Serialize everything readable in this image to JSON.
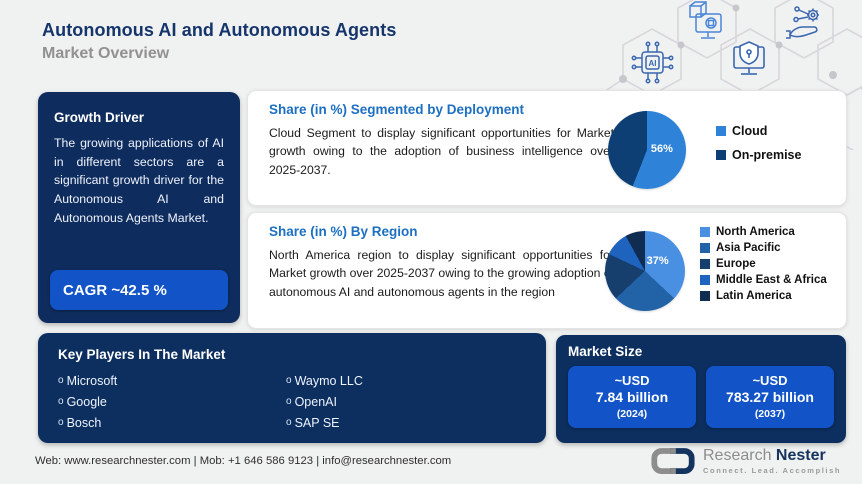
{
  "header": {
    "title": "Autonomous AI and Autonomous Agents",
    "subtitle": "Market Overview"
  },
  "growth_driver": {
    "title": "Growth Driver",
    "body": "The growing applications of AI in different sectors are a significant growth driver for the Autonomous AI and Autonomous Agents Market.",
    "cagr_label": "CAGR ~42.5 %"
  },
  "deployment_card": {
    "title": "Share (in %) Segmented by Deployment",
    "body": "Cloud Segment to display significant opportunities for Market growth owing to the adoption of business intelligence over 2025-2037."
  },
  "region_card": {
    "title": "Share (in %) By Region",
    "body": "North America region to display significant opportunities for Market growth over 2025-2037 owing to the growing adoption of autonomous AI and autonomous agents in the region"
  },
  "chart_data": [
    {
      "type": "pie",
      "title": "Share (in %) Segmented by Deployment",
      "labels": [
        "Cloud",
        "On-premise"
      ],
      "values": [
        56,
        44
      ],
      "colors": [
        "#2e82d8",
        "#0d3e74"
      ],
      "data_label": "56%",
      "legend_position": "right"
    },
    {
      "type": "pie",
      "title": "Share (in %) By Region",
      "labels": [
        "North America",
        "Asia Pacific",
        "Europe",
        "Middle East & Africa",
        "Latin America"
      ],
      "values": [
        37,
        26,
        19,
        10,
        8
      ],
      "colors": [
        "#4a90e2",
        "#2263a8",
        "#173f6d",
        "#1e63bd",
        "#102c50"
      ],
      "data_label": "37%",
      "legend_position": "right"
    }
  ],
  "key_players": {
    "title": "Key Players In The Market",
    "bullet": "o",
    "column1": [
      "Microsoft",
      "Google",
      "Bosch"
    ],
    "column2": [
      "Waymo LLC",
      "OpenAI",
      "SAP SE"
    ]
  },
  "market_size": {
    "title": "Market Size",
    "boxes": [
      {
        "line1": "~USD",
        "line2": "7.84 billion",
        "line3": "(2024)"
      },
      {
        "line1": "~USD",
        "line2": "783.27 billion",
        "line3": "(2037)"
      }
    ]
  },
  "footer": {
    "contact": "Web: www.researchnester.com | Mob: +1 646 586 9123 | info@researchnester.com"
  },
  "brand": {
    "name_part1": "Research ",
    "name_part2": "Nester",
    "tagline": "Connect. Lead. Accomplish"
  },
  "decor_icons": [
    "ai-chip-icon",
    "ar-cube-monitor-icon",
    "shield-security-monitor-icon",
    "hand-network-gear-icon"
  ],
  "colors": {
    "navy_box": "#0c2f60",
    "accent_blue": "#1254c8",
    "card_title_blue": "#1d6fc2",
    "title_navy": "#15356b",
    "subtitle_gray": "#919191",
    "background": "#f0f1f1"
  }
}
